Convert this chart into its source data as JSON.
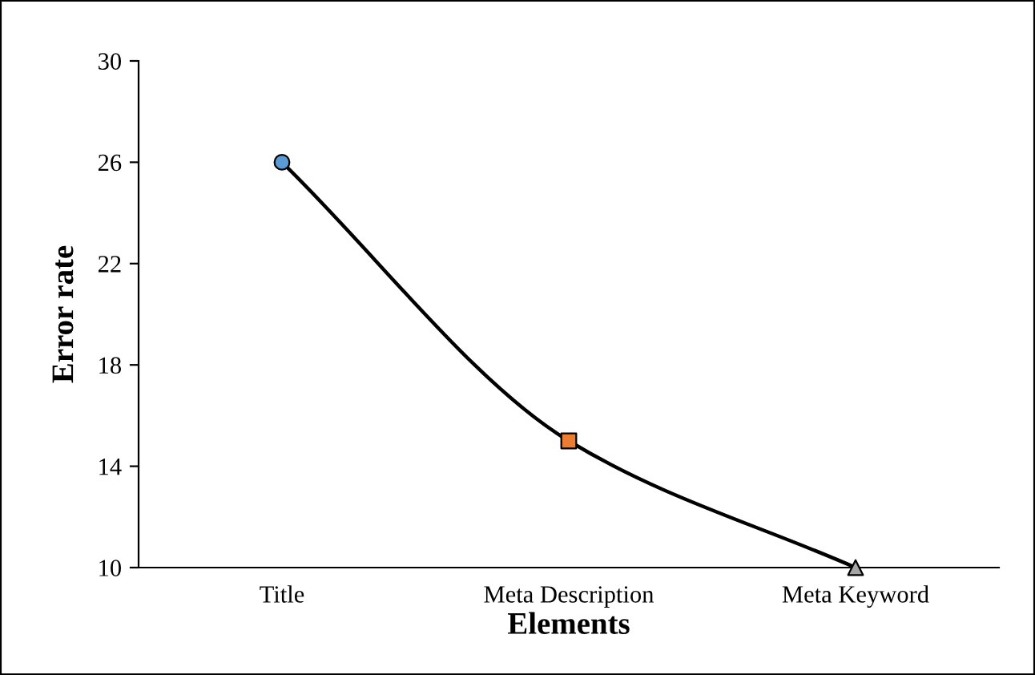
{
  "chart_data": {
    "type": "line",
    "xlabel": "Elements",
    "ylabel": "Error rate",
    "categories": [
      "Title",
      "Meta Description",
      "Meta Keyword"
    ],
    "series": [
      {
        "color": "#000000",
        "colors": [
          "#5b9bd5",
          "#ed7d31",
          "#a5a5a5"
        ],
        "marker": [
          "circle",
          "square",
          "triangle"
        ],
        "values": [
          26,
          15,
          10
        ]
      }
    ],
    "ylim": [
      10,
      30
    ],
    "yticks": [
      10,
      14,
      18,
      22,
      26,
      30
    ],
    "grid": false
  }
}
